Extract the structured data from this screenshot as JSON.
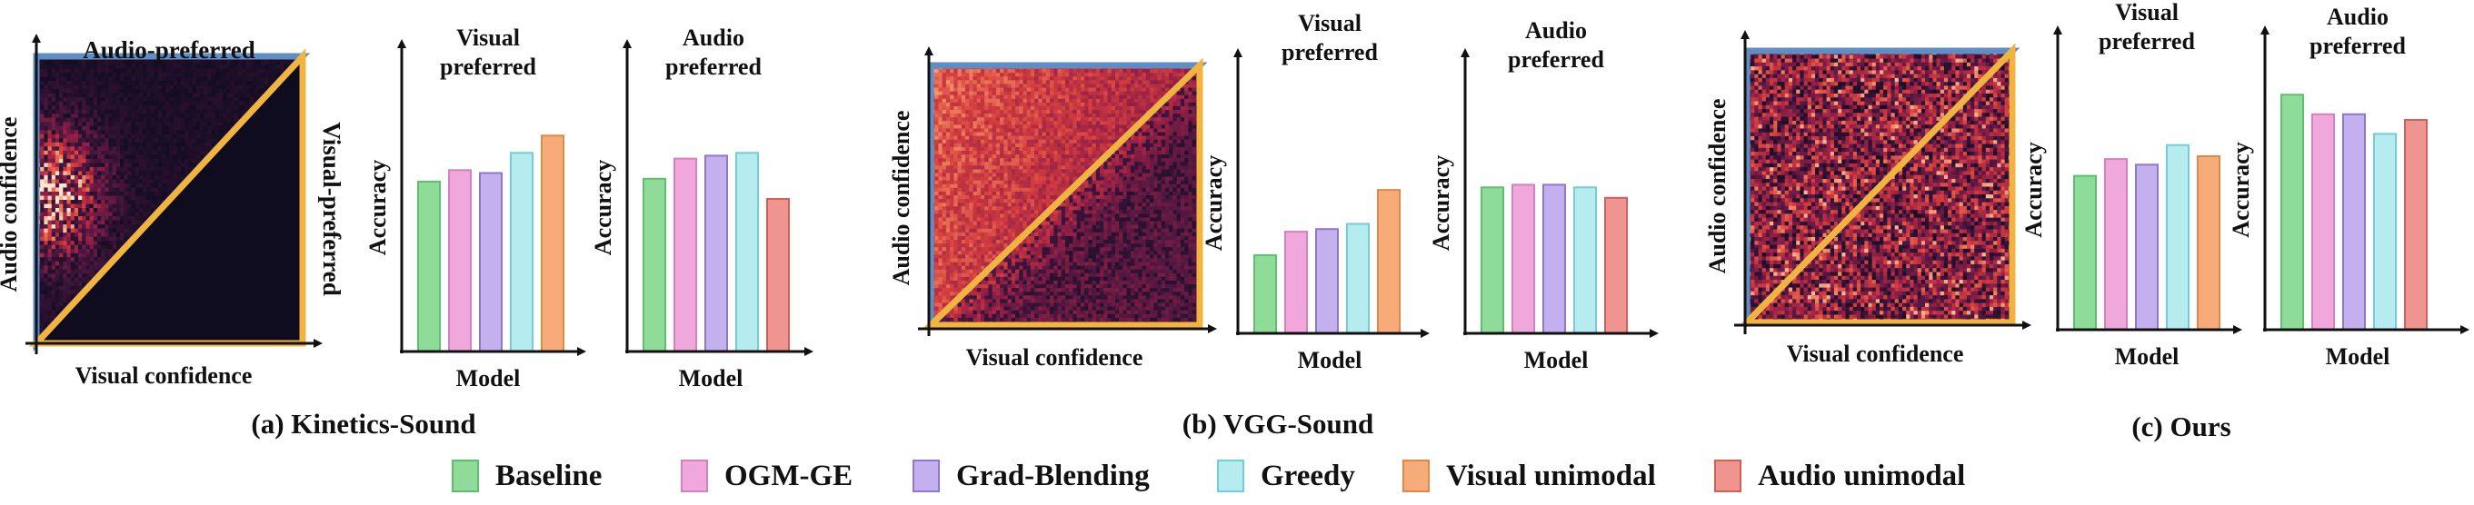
{
  "colors": {
    "audio_border": "#5f8ec5",
    "visual_border": "#f2b441",
    "Baseline": "#8fdc9a",
    "OGM-GE": "#f0a7dc",
    "Grad-Blending": "#c4b0ee",
    "Greedy": "#b6ecef",
    "Visual unimodal": "#f6ab78",
    "Audio unimodal": "#f09490"
  },
  "border_colors": {
    "Baseline": "#5fbf6c",
    "OGM-GE": "#d77fbf",
    "Grad-Blending": "#8e77cf",
    "Greedy": "#6fcfd4",
    "Visual unimodal": "#e08849",
    "Audio unimodal": "#d0605c"
  },
  "legend": [
    "Baseline",
    "OGM-GE",
    "Grad-Blending",
    "Greedy",
    "Visual unimodal",
    "Audio unimodal"
  ],
  "panels": [
    {
      "caption": "(a) Kinetics-Sound",
      "heatmap": {
        "xlabel": "Visual confidence",
        "ylabel": "Audio confidence",
        "audio_region_label": "Audio-preferred",
        "visual_region_label": "Visual-preferred"
      }
    },
    {
      "caption": "(b) VGG-Sound",
      "heatmap": {
        "xlabel": "Visual confidence",
        "ylabel": "Audio confidence",
        "audio_region_label": "",
        "visual_region_label": ""
      }
    },
    {
      "caption": "(c) Ours",
      "heatmap": {
        "xlabel": "Visual confidence",
        "ylabel": "Audio confidence",
        "audio_region_label": "",
        "visual_region_label": ""
      }
    }
  ],
  "chart_data": [
    {
      "type": "heatmap",
      "panel": "(a) Kinetics-Sound",
      "xlabel": "Visual confidence",
      "ylabel": "Audio confidence",
      "xlim": [
        0,
        1
      ],
      "ylim": [
        0,
        1
      ],
      "regions": [
        "Audio-preferred",
        "Visual-preferred"
      ],
      "density": "concentrated"
    },
    {
      "type": "bar",
      "panel": "(a) Kinetics-Sound",
      "title": "Visual preferred",
      "xlabel": "Model",
      "ylabel": "Accuracy",
      "categories": [
        "Baseline",
        "OGM-GE",
        "Grad-Blending",
        "Greedy",
        "Visual unimodal"
      ],
      "values": [
        0.59,
        0.63,
        0.62,
        0.69,
        0.75
      ],
      "ylim": [
        0,
        1
      ]
    },
    {
      "type": "bar",
      "panel": "(a) Kinetics-Sound",
      "title": "Audio preferred",
      "xlabel": "Model",
      "ylabel": "Accuracy",
      "categories": [
        "Baseline",
        "OGM-GE",
        "Grad-Blending",
        "Greedy",
        "Audio unimodal"
      ],
      "values": [
        0.6,
        0.67,
        0.68,
        0.69,
        0.53
      ],
      "ylim": [
        0,
        1
      ]
    },
    {
      "type": "heatmap",
      "panel": "(b) VGG-Sound",
      "xlabel": "Visual confidence",
      "ylabel": "Audio confidence",
      "xlim": [
        0,
        1
      ],
      "ylim": [
        0,
        1
      ],
      "density": "upper-left"
    },
    {
      "type": "bar",
      "panel": "(b) VGG-Sound",
      "title": "Visual preferred",
      "xlabel": "Model",
      "ylabel": "Accuracy",
      "categories": [
        "Baseline",
        "OGM-GE",
        "Grad-Blending",
        "Greedy",
        "Visual unimodal"
      ],
      "values": [
        0.3,
        0.39,
        0.4,
        0.42,
        0.55
      ],
      "ylim": [
        0,
        1
      ]
    },
    {
      "type": "bar",
      "panel": "(b) VGG-Sound",
      "title": "Audio preferred",
      "xlabel": "Model",
      "ylabel": "Accuracy",
      "categories": [
        "Baseline",
        "OGM-GE",
        "Grad-Blending",
        "Greedy",
        "Audio unimodal"
      ],
      "values": [
        0.56,
        0.57,
        0.57,
        0.56,
        0.52
      ],
      "ylim": [
        0,
        1
      ]
    },
    {
      "type": "heatmap",
      "panel": "(c) Ours",
      "xlabel": "Visual confidence",
      "ylabel": "Audio confidence",
      "xlim": [
        0,
        1
      ],
      "ylim": [
        0,
        1
      ],
      "density": "uniform"
    },
    {
      "type": "bar",
      "panel": "(c) Ours",
      "title": "Visual preferred",
      "xlabel": "Model",
      "ylabel": "Accuracy",
      "categories": [
        "Baseline",
        "OGM-GE",
        "Grad-Blending",
        "Greedy",
        "Visual unimodal"
      ],
      "values": [
        0.55,
        0.61,
        0.59,
        0.66,
        0.62
      ],
      "ylim": [
        0,
        1
      ]
    },
    {
      "type": "bar",
      "panel": "(c) Ours",
      "title": "Audio preferred",
      "xlabel": "Model",
      "ylabel": "Accuracy",
      "categories": [
        "Baseline",
        "OGM-GE",
        "Grad-Blending",
        "Greedy",
        "Audio unimodal"
      ],
      "values": [
        0.84,
        0.77,
        0.77,
        0.7,
        0.75
      ],
      "ylim": [
        0,
        1
      ]
    }
  ]
}
